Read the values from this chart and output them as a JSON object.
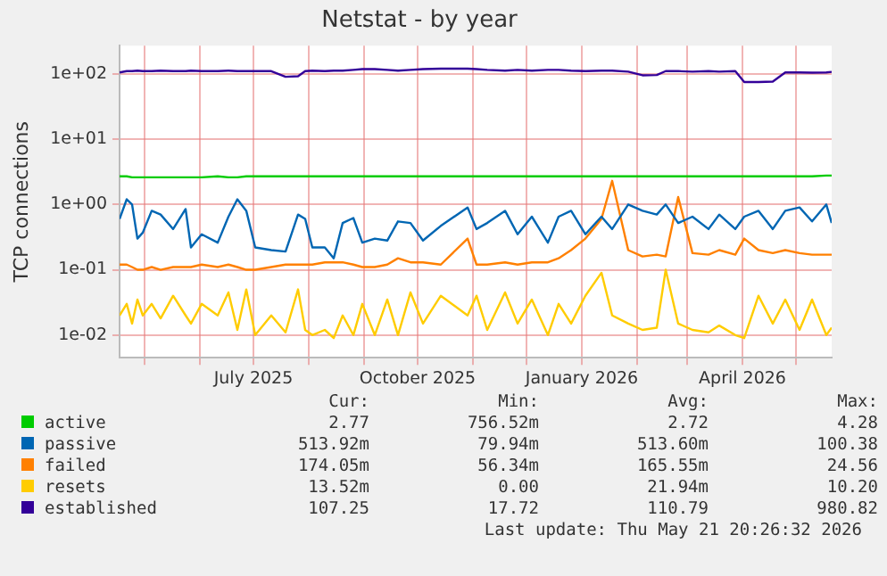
{
  "chart_data": {
    "type": "line",
    "title": "Netstat - by year",
    "ylabel": "TCP connections",
    "log": true,
    "grid": true,
    "legend": "bottom",
    "marker": "none",
    "line_style": "solid",
    "xlim": [
      "2025-04-17",
      "2026-05-21"
    ],
    "xticks": [
      {
        "value": "2025-05",
        "label": null
      },
      {
        "value": "2025-06",
        "label": null
      },
      {
        "value": "2025-07",
        "label": "July 2025"
      },
      {
        "value": "2025-08",
        "label": null
      },
      {
        "value": "2025-09",
        "label": null
      },
      {
        "value": "2025-10",
        "label": "October 2025"
      },
      {
        "value": "2025-11",
        "label": null
      },
      {
        "value": "2025-12",
        "label": null
      },
      {
        "value": "2026-01",
        "label": "January 2026"
      },
      {
        "value": "2026-02",
        "label": null
      },
      {
        "value": "2026-03",
        "label": null
      },
      {
        "value": "2026-04",
        "label": "April 2026"
      },
      {
        "value": "2026-05",
        "label": null
      }
    ],
    "ylim": [
      0.0045,
      270
    ],
    "yticks": [
      {
        "value": 0.01,
        "label": "1e-02"
      },
      {
        "value": 0.1,
        "label": "1e-01"
      },
      {
        "value": 1,
        "label": "1e+00"
      },
      {
        "value": 10,
        "label": "1e+01"
      },
      {
        "value": 100,
        "label": "1e+02"
      }
    ],
    "x": [
      "2025-04-17",
      "2025-04-21",
      "2025-04-24",
      "2025-04-27",
      "2025-04-30",
      "2025-05-05",
      "2025-05-10",
      "2025-05-17",
      "2025-05-24",
      "2025-05-27",
      "2025-06-02",
      "2025-06-11",
      "2025-06-17",
      "2025-06-22",
      "2025-06-27",
      "2025-07-02",
      "2025-07-11",
      "2025-07-19",
      "2025-07-26",
      "2025-07-30",
      "2025-08-03",
      "2025-08-10",
      "2025-08-15",
      "2025-08-20",
      "2025-08-26",
      "2025-08-31",
      "2025-09-07",
      "2025-09-14",
      "2025-09-20",
      "2025-09-27",
      "2025-10-04",
      "2025-10-14",
      "2025-10-29",
      "2025-11-03",
      "2025-11-09",
      "2025-11-19",
      "2025-11-26",
      "2025-12-04",
      "2025-12-13",
      "2025-12-19",
      "2025-12-26",
      "2026-01-03",
      "2026-01-12",
      "2026-01-18",
      "2026-01-27",
      "2026-02-04",
      "2026-02-12",
      "2026-02-17",
      "2026-02-24",
      "2026-03-04",
      "2026-03-13",
      "2026-03-19",
      "2026-03-28",
      "2026-04-02",
      "2026-04-10",
      "2026-04-18",
      "2026-04-25",
      "2026-05-03",
      "2026-05-10",
      "2026-05-18",
      "2026-05-21"
    ],
    "series": [
      {
        "name": "active",
        "color": "#00cc00",
        "values": [
          2.7,
          2.7,
          2.6,
          2.6,
          2.6,
          2.6,
          2.6,
          2.6,
          2.6,
          2.6,
          2.6,
          2.7,
          2.6,
          2.6,
          2.7,
          2.7,
          2.7,
          2.7,
          2.7,
          2.7,
          2.7,
          2.7,
          2.7,
          2.7,
          2.7,
          2.7,
          2.7,
          2.7,
          2.7,
          2.7,
          2.7,
          2.7,
          2.7,
          2.7,
          2.7,
          2.7,
          2.7,
          2.7,
          2.7,
          2.7,
          2.7,
          2.7,
          2.7,
          2.7,
          2.7,
          2.7,
          2.7,
          2.7,
          2.7,
          2.7,
          2.7,
          2.7,
          2.7,
          2.7,
          2.7,
          2.7,
          2.7,
          2.7,
          2.7,
          2.77,
          2.77
        ]
      },
      {
        "name": "passive",
        "color": "#0066b3",
        "values": [
          0.6,
          1.2,
          1.0,
          0.3,
          0.37,
          0.8,
          0.7,
          0.42,
          0.85,
          0.22,
          0.35,
          0.26,
          0.65,
          1.2,
          0.8,
          0.22,
          0.2,
          0.19,
          0.7,
          0.6,
          0.22,
          0.22,
          0.15,
          0.52,
          0.62,
          0.26,
          0.3,
          0.28,
          0.55,
          0.52,
          0.28,
          0.47,
          0.9,
          0.42,
          0.52,
          0.8,
          0.35,
          0.65,
          0.26,
          0.65,
          0.8,
          0.35,
          0.65,
          0.42,
          1.0,
          0.8,
          0.7,
          1.0,
          0.52,
          0.65,
          0.42,
          0.7,
          0.42,
          0.65,
          0.8,
          0.42,
          0.8,
          0.9,
          0.55,
          1.0,
          0.52
        ]
      },
      {
        "name": "failed",
        "color": "#ff8000",
        "values": [
          0.12,
          0.12,
          0.11,
          0.1,
          0.1,
          0.11,
          0.1,
          0.11,
          0.11,
          0.11,
          0.12,
          0.11,
          0.12,
          0.11,
          0.1,
          0.1,
          0.11,
          0.12,
          0.12,
          0.12,
          0.12,
          0.13,
          0.13,
          0.13,
          0.12,
          0.11,
          0.11,
          0.12,
          0.15,
          0.13,
          0.13,
          0.12,
          0.3,
          0.12,
          0.12,
          0.13,
          0.12,
          0.13,
          0.13,
          0.15,
          0.2,
          0.3,
          0.6,
          2.3,
          0.2,
          0.16,
          0.17,
          0.16,
          1.3,
          0.18,
          0.17,
          0.2,
          0.17,
          0.3,
          0.2,
          0.18,
          0.2,
          0.18,
          0.17,
          0.17,
          0.17
        ]
      },
      {
        "name": "resets",
        "color": "#ffcc00",
        "values": [
          0.02,
          0.03,
          0.015,
          0.035,
          0.02,
          0.03,
          0.018,
          0.04,
          0.02,
          0.015,
          0.03,
          0.02,
          0.045,
          0.012,
          0.05,
          0.01,
          0.02,
          0.011,
          0.05,
          0.012,
          0.01,
          0.012,
          0.009,
          0.02,
          0.01,
          0.03,
          0.01,
          0.035,
          0.01,
          0.045,
          0.015,
          0.04,
          0.02,
          0.04,
          0.012,
          0.045,
          0.015,
          0.035,
          0.01,
          0.03,
          0.015,
          0.04,
          0.09,
          0.02,
          0.015,
          0.012,
          0.013,
          0.1,
          0.015,
          0.012,
          0.011,
          0.014,
          0.01,
          0.009,
          0.04,
          0.015,
          0.035,
          0.012,
          0.035,
          0.01,
          0.013
        ]
      },
      {
        "name": "established",
        "color": "#330099",
        "values": [
          105,
          110,
          110,
          112,
          110,
          110,
          112,
          110,
          110,
          112,
          110,
          110,
          112,
          110,
          110,
          110,
          110,
          90,
          92,
          110,
          112,
          110,
          112,
          112,
          115,
          118,
          118,
          115,
          112,
          115,
          118,
          120,
          120,
          118,
          115,
          112,
          115,
          112,
          115,
          115,
          112,
          110,
          112,
          112,
          108,
          95,
          96,
          110,
          110,
          108,
          110,
          108,
          110,
          75,
          75,
          76,
          105,
          105,
          104,
          105,
          107
        ]
      }
    ],
    "annotations": [
      "Cur:",
      "Min:",
      "Avg:",
      "Max:",
      "2.77",
      "756.52m",
      "2.72",
      "4.28",
      "513.92m",
      "79.94m",
      "513.60m",
      "100.38",
      "174.05m",
      "56.34m",
      "165.55m",
      "24.56",
      "13.52m",
      "0.00",
      "21.94m",
      "10.20",
      "107.25",
      "17.72",
      "110.79",
      "980.82",
      "Last update: Thu May 21 20:26:32 2026"
    ]
  }
}
